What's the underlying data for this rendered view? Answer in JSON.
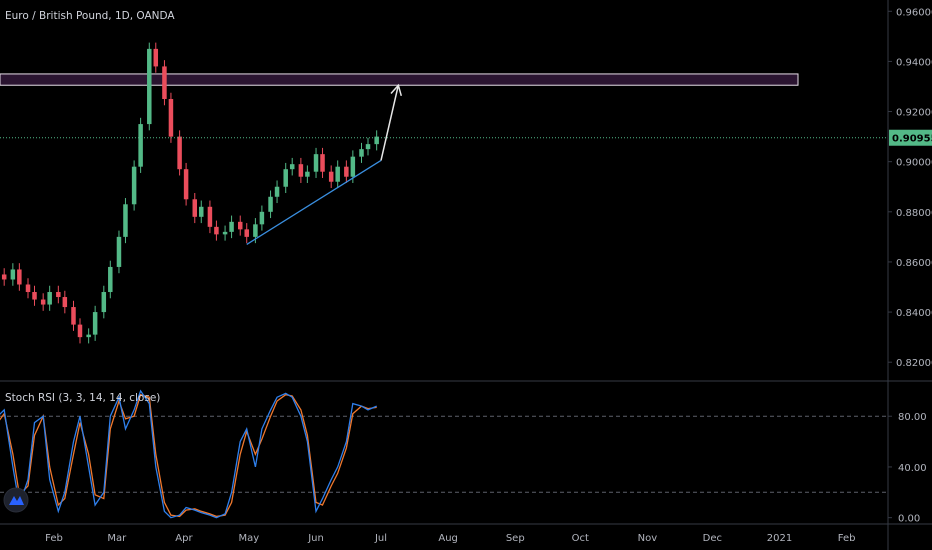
{
  "header": {
    "symbol_title": "Euro / British Pound, 1D, OANDA"
  },
  "indicator": {
    "title": "Stoch RSI (3, 3, 14, 14, close)"
  },
  "colors": {
    "background": "#000000",
    "bull": "#53b987",
    "bear": "#eb4d5c",
    "zone_fill": "#2a1430",
    "zone_border": "#e8e0ea",
    "trendline": "#3a8fe0",
    "projection_arrow": "#e6e6e6",
    "price_line": "#53b987",
    "k_line": "#2f80ed",
    "d_line": "#f0782d",
    "logo": "#2962ff"
  },
  "icons": {
    "logo": "tradingview-logo-icon"
  },
  "chart_data": [
    {
      "type": "candlestick",
      "title": "Euro / British Pound, 1D, OANDA",
      "y_axis": {
        "range": [
          0.8125,
          0.9645
        ],
        "ticks": [
          "0.96000",
          "0.94000",
          "0.92000",
          "0.90000",
          "0.88000",
          "0.86000",
          "0.84000",
          "0.82000"
        ],
        "tick_values": [
          0.96,
          0.94,
          0.92,
          0.9,
          0.88,
          0.86,
          0.84,
          0.82
        ],
        "position": "right"
      },
      "x_axis": {
        "months": [
          "Feb",
          "Mar",
          "Apr",
          "May",
          "Jun",
          "Jul",
          "Aug",
          "Sep",
          "Oct",
          "Nov",
          "Dec",
          "2021",
          "Feb"
        ],
        "month_dates": [
          "2020-02-01",
          "2020-03-01",
          "2020-04-01",
          "2020-05-01",
          "2020-06-01",
          "2020-07-01",
          "2020-08-01",
          "2020-09-01",
          "2020-10-01",
          "2020-11-01",
          "2020-12-01",
          "2021-01-01",
          "2021-02-01"
        ]
      },
      "series": {
        "dates": [
          "2020-01-06",
          "2020-01-09",
          "2020-01-13",
          "2020-01-16",
          "2020-01-20",
          "2020-01-23",
          "2020-01-27",
          "2020-01-30",
          "2020-02-03",
          "2020-02-06",
          "2020-02-10",
          "2020-02-13",
          "2020-02-17",
          "2020-02-20",
          "2020-02-24",
          "2020-02-27",
          "2020-03-02",
          "2020-03-05",
          "2020-03-09",
          "2020-03-12",
          "2020-03-16",
          "2020-03-19",
          "2020-03-23",
          "2020-03-26",
          "2020-03-30",
          "2020-04-02",
          "2020-04-06",
          "2020-04-09",
          "2020-04-13",
          "2020-04-16",
          "2020-04-20",
          "2020-04-23",
          "2020-04-27",
          "2020-04-30",
          "2020-05-04",
          "2020-05-07",
          "2020-05-11",
          "2020-05-14",
          "2020-05-18",
          "2020-05-21",
          "2020-05-25",
          "2020-05-28",
          "2020-06-01",
          "2020-06-04",
          "2020-06-08",
          "2020-06-11",
          "2020-06-15",
          "2020-06-18",
          "2020-06-22",
          "2020-06-25",
          "2020-06-29"
        ],
        "close": [
          0.855,
          0.853,
          0.857,
          0.851,
          0.848,
          0.845,
          0.843,
          0.848,
          0.846,
          0.842,
          0.835,
          0.83,
          0.831,
          0.84,
          0.848,
          0.858,
          0.87,
          0.883,
          0.898,
          0.915,
          0.945,
          0.938,
          0.925,
          0.91,
          0.897,
          0.885,
          0.878,
          0.882,
          0.874,
          0.871,
          0.872,
          0.876,
          0.873,
          0.87,
          0.875,
          0.88,
          0.886,
          0.89,
          0.897,
          0.899,
          0.894,
          0.896,
          0.903,
          0.896,
          0.892,
          0.898,
          0.894,
          0.902,
          0.905,
          0.907,
          0.91
        ]
      },
      "support_zone": {
        "from": 0.9305,
        "to": 0.935
      },
      "current_price": 0.90955,
      "current_price_label": "0.90955",
      "trendline": {
        "from": {
          "date": "2020-04-30",
          "value": 0.867
        },
        "to": {
          "date": "2020-07-01",
          "value": 0.9005
        }
      },
      "projection_arrow": {
        "from": {
          "date": "2020-07-01",
          "value": 0.9005
        },
        "to": {
          "date": "2020-07-09",
          "value": 0.9305
        }
      }
    },
    {
      "type": "line",
      "title": "Stoch RSI (3, 3, 14, 14, close)",
      "y_axis": {
        "range": [
          -5,
          107
        ],
        "ticks": [
          "80.00",
          "40.00",
          "0.00"
        ],
        "tick_values": [
          80,
          40,
          0
        ],
        "position": "right"
      },
      "bands": [
        80,
        20
      ],
      "x": [
        "2020-01-06",
        "2020-01-09",
        "2020-01-13",
        "2020-01-16",
        "2020-01-20",
        "2020-01-23",
        "2020-01-27",
        "2020-01-30",
        "2020-02-03",
        "2020-02-06",
        "2020-02-10",
        "2020-02-13",
        "2020-02-17",
        "2020-02-20",
        "2020-02-24",
        "2020-02-27",
        "2020-03-02",
        "2020-03-05",
        "2020-03-09",
        "2020-03-12",
        "2020-03-16",
        "2020-03-19",
        "2020-03-23",
        "2020-03-26",
        "2020-03-30",
        "2020-04-02",
        "2020-04-06",
        "2020-04-09",
        "2020-04-13",
        "2020-04-16",
        "2020-04-20",
        "2020-04-23",
        "2020-04-27",
        "2020-04-30",
        "2020-05-04",
        "2020-05-07",
        "2020-05-11",
        "2020-05-14",
        "2020-05-18",
        "2020-05-21",
        "2020-05-25",
        "2020-05-28",
        "2020-06-01",
        "2020-06-04",
        "2020-06-08",
        "2020-06-11",
        "2020-06-15",
        "2020-06-18",
        "2020-06-22",
        "2020-06-25",
        "2020-06-29"
      ],
      "series": [
        {
          "values": [
            80,
            85,
            40,
            10,
            30,
            75,
            80,
            30,
            5,
            20,
            60,
            80,
            40,
            10,
            20,
            80,
            95,
            70,
            85,
            100,
            90,
            40,
            5,
            0,
            2,
            8,
            6,
            4,
            2,
            0,
            3,
            20,
            60,
            70,
            40,
            70,
            85,
            95,
            98,
            95,
            80,
            60,
            5,
            15,
            30,
            40,
            60,
            90,
            88,
            85,
            88
          ]
        },
        {
          "values": [
            75,
            82,
            50,
            18,
            25,
            65,
            80,
            40,
            10,
            15,
            50,
            75,
            50,
            18,
            15,
            70,
            92,
            78,
            80,
            97,
            95,
            50,
            12,
            2,
            1,
            6,
            7,
            5,
            3,
            1,
            2,
            12,
            50,
            68,
            50,
            62,
            80,
            92,
            97,
            96,
            85,
            65,
            12,
            10,
            25,
            35,
            55,
            82,
            88,
            86,
            87
          ]
        }
      ]
    }
  ]
}
